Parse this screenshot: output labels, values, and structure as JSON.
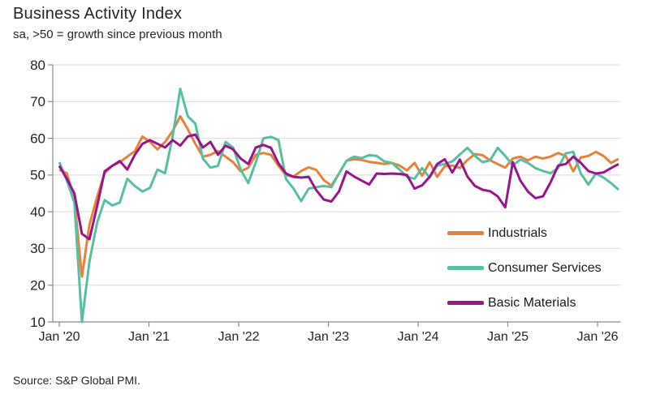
{
  "header": {
    "title": "Business Activity Index",
    "subtitle": "sa, >50 = growth since previous month"
  },
  "source_note": "Source: S&P Global PMI.",
  "colors": {
    "industrials": "#E8823B",
    "consumer_services": "#57BFA2",
    "basic_materials": "#9A148C",
    "gridline": "#D9D9D9",
    "axis": "#8C8C8C",
    "tick_text": "#262626"
  },
  "chart_data": {
    "type": "line",
    "title": "Business Activity Index",
    "subtitle": "sa, >50 = growth since previous month",
    "frequency": "monthly",
    "x_start": "Jan 2020",
    "x_end": "Mar 2026",
    "n_points": 75,
    "x_axis": {
      "tick_labels": [
        "Jan '20",
        "Jan '21",
        "Jan '22",
        "Jan '23",
        "Jan '24",
        "Jan '25",
        "Jan '26"
      ]
    },
    "y_axis": {
      "min": 10,
      "max": 80,
      "ticks": [
        10,
        20,
        30,
        40,
        50,
        60,
        70,
        80
      ]
    },
    "grid": "horizontal",
    "legend_position": "inside-lower-right",
    "series": [
      {
        "name": "Industrials",
        "color": "#E8823B",
        "values": [
          51.5,
          50.5,
          43.5,
          22.3,
          36.5,
          44,
          50.5,
          52.5,
          53.5,
          55,
          56.5,
          60.5,
          59,
          57,
          59,
          62,
          66,
          62.5,
          58.5,
          55,
          55.5,
          56.5,
          55,
          53.5,
          51,
          52,
          55.5,
          56,
          55.5,
          52.5,
          49.9,
          49.6,
          51.1,
          52.1,
          51.4,
          48.6,
          47.1,
          50.4,
          53.9,
          54.3,
          54.1,
          53.6,
          53.3,
          53,
          53.3,
          52.6,
          51.3,
          53.3,
          49.8,
          53.5,
          49.5,
          52.4,
          52.6,
          51.9,
          54.1,
          55.7,
          55.4,
          54,
          53,
          52,
          54.5,
          55,
          54,
          55,
          54.5,
          55,
          56,
          55.2,
          51,
          54.8,
          55.2,
          56.3,
          55.2,
          53.3,
          54.4
        ]
      },
      {
        "name": "Consumer Services",
        "color": "#57BFA2",
        "values": [
          53.5,
          48.5,
          42.5,
          10,
          26.5,
          37,
          43.2,
          41.7,
          42.5,
          49,
          47,
          45.5,
          46.5,
          51.5,
          50.5,
          60.5,
          73.5,
          66,
          64,
          54.5,
          52,
          52.5,
          59,
          57.5,
          51.5,
          47.8,
          53.5,
          60,
          60.4,
          59.5,
          48.9,
          46.3,
          42.9,
          46.3,
          46.7,
          47,
          46.7,
          50.4,
          53.9,
          55,
          54.6,
          55.4,
          55.2,
          53.7,
          53.3,
          51.5,
          49.5,
          49,
          51.9,
          49.3,
          52.6,
          53,
          53.7,
          55.6,
          57.4,
          55.2,
          53.5,
          54,
          57.4,
          55.2,
          52.6,
          54.2,
          53.3,
          51.9,
          51.1,
          50.5,
          51.9,
          55.9,
          56.3,
          50.4,
          47.4,
          50.4,
          49.3,
          47.8,
          46
        ]
      },
      {
        "name": "Basic Materials",
        "color": "#9A148C",
        "values": [
          52.5,
          49,
          45,
          34,
          32.5,
          41.5,
          51,
          52.5,
          53.8,
          51.5,
          55.5,
          58.5,
          59.5,
          58.5,
          57.5,
          59.5,
          58,
          60.5,
          61,
          57.5,
          59,
          55.5,
          58,
          57,
          54.5,
          53,
          57.5,
          58.2,
          57.4,
          53.2,
          50.4,
          49.5,
          49.3,
          49.5,
          45.9,
          43.3,
          42.8,
          45.5,
          51,
          49.6,
          48.5,
          47.4,
          50.4,
          50.3,
          50.4,
          50.3,
          50,
          46.3,
          47.2,
          49.5,
          53,
          54.3,
          50.7,
          54.2,
          49.6,
          47,
          46,
          45.6,
          44.2,
          41.2,
          53.5,
          48.5,
          45.5,
          43.7,
          44.2,
          48,
          52.6,
          53,
          55,
          53.3,
          51.1,
          50.4,
          50.7,
          51.9,
          53
        ]
      }
    ]
  }
}
